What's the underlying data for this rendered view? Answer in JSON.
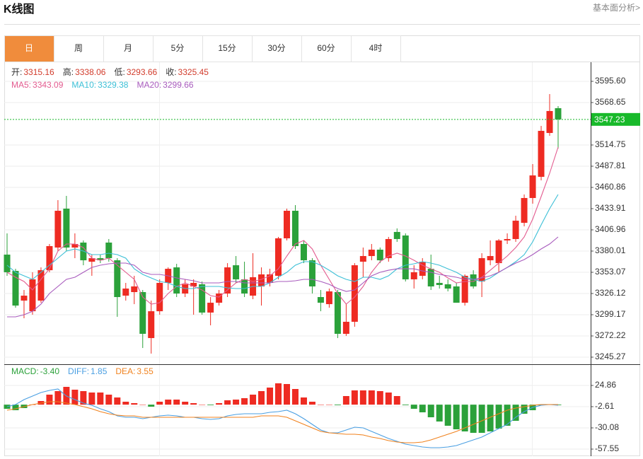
{
  "header": {
    "title": "K线图",
    "link": "基本面分析>"
  },
  "tabs": [
    {
      "label": "日",
      "active": true
    },
    {
      "label": "周"
    },
    {
      "label": "月"
    },
    {
      "label": "5分"
    },
    {
      "label": "15分"
    },
    {
      "label": "30分"
    },
    {
      "label": "60分"
    },
    {
      "label": "4时"
    }
  ],
  "chart_data": [
    {
      "type": "candlestick",
      "up_color": "#ee2b22",
      "down_color": "#2ba13a",
      "grid": true,
      "ylim": [
        3236.28,
        3619.85
      ],
      "yticks": [
        3245.27,
        3272.22,
        3299.17,
        3326.12,
        3353.07,
        3380.01,
        3406.96,
        3433.91,
        3460.86,
        3487.81,
        3514.75,
        3568.65,
        {
          "value": 3595.6,
          "label": "3595.60"
        }
      ],
      "last_price": 3547.23,
      "last_price_color": "#18b92a",
      "readout_color": "#d23c2c",
      "readout": [
        {
          "label": "开:",
          "value": 3315.16
        },
        {
          "label": "高:",
          "value": 3338.06
        },
        {
          "label": "低:",
          "value": 3293.66
        },
        {
          "label": "收:",
          "value": 3325.45
        }
      ],
      "open": [
        3375.5,
        3354.8,
        3317.1,
        3303.6,
        3317.1,
        3355.7,
        3384.5,
        3433.9,
        3384.5,
        3390.8,
        3366.5,
        3371.0,
        3390.8,
        3368.3,
        3323.4,
        3327.9,
        3327.9,
        3269.5,
        3303.6,
        3339.6,
        3359.3,
        3326.1,
        3335.1,
        3337.8,
        3301.9,
        3314.4,
        3326.1,
        3362.0,
        3344.1,
        3323.4,
        3335.1,
        3339.6,
        3348.6,
        3396.2,
        3431.2,
        3389.0,
        3368.3,
        3321.6,
        3312.6,
        3327.9,
        3274.9,
        3290.2,
        3366.5,
        3373.7,
        3381.8,
        3371.0,
        3404.3,
        3399.8,
        3344.1,
        3348.6,
        3357.5,
        3339.6,
        3337.8,
        3335.1,
        3314.4,
        3350.4,
        3341.4,
        3368.3,
        3364.7,
        3393.5,
        3395.3,
        3415.9,
        3447.4,
        3474.3,
        3530.0,
        3561.5
      ],
      "high": [
        3402.5,
        3357.5,
        3330.6,
        3353.1,
        3359.3,
        3389.0,
        3444.7,
        3450.1,
        3402.5,
        3393.5,
        3375.5,
        3375.5,
        3395.3,
        3371.0,
        3339.6,
        3348.6,
        3330.6,
        3317.1,
        3344.1,
        3359.3,
        3363.8,
        3344.1,
        3344.1,
        3341.4,
        3321.6,
        3330.6,
        3364.7,
        3373.7,
        3366.5,
        3377.3,
        3359.3,
        3357.5,
        3398.0,
        3433.9,
        3438.4,
        3393.5,
        3371.0,
        3330.6,
        3332.4,
        3330.6,
        3312.6,
        3364.7,
        3384.5,
        3389.0,
        3384.5,
        3398.0,
        3408.8,
        3402.5,
        3362.0,
        3371.0,
        3375.5,
        3348.6,
        3344.1,
        3339.6,
        3350.4,
        3355.7,
        3377.3,
        3393.5,
        3395.3,
        3402.5,
        3424.9,
        3451.9,
        3490.5,
        3539.0,
        3579.4,
        3564.2
      ],
      "low": [
        3348.6,
        3308.1,
        3294.7,
        3299.2,
        3314.4,
        3353.1,
        3380.0,
        3380.0,
        3371.0,
        3362.0,
        3348.6,
        3364.7,
        3366.5,
        3296.5,
        3317.1,
        3312.6,
        3256.9,
        3249.8,
        3299.2,
        3330.6,
        3321.6,
        3321.6,
        3299.2,
        3299.2,
        3285.7,
        3310.8,
        3321.6,
        3339.6,
        3321.6,
        3318.9,
        3310.8,
        3335.1,
        3344.1,
        3393.5,
        3382.7,
        3364.7,
        3326.1,
        3303.6,
        3308.1,
        3269.5,
        3272.2,
        3283.9,
        3346.8,
        3368.3,
        3364.7,
        3366.5,
        3391.7,
        3341.4,
        3332.4,
        3344.1,
        3330.6,
        3332.4,
        3328.8,
        3314.4,
        3310.8,
        3332.4,
        3321.6,
        3362.0,
        3353.1,
        3389.0,
        3391.7,
        3411.4,
        3440.2,
        3469.8,
        3526.4,
        3510.3
      ],
      "close": [
        3353.1,
        3310.8,
        3323.4,
        3344.1,
        3355.7,
        3386.3,
        3431.2,
        3384.5,
        3389.0,
        3368.3,
        3371.0,
        3368.3,
        3371.0,
        3321.6,
        3332.4,
        3335.1,
        3274.9,
        3303.6,
        3339.6,
        3357.5,
        3326.1,
        3337.8,
        3339.6,
        3301.9,
        3314.4,
        3326.1,
        3359.3,
        3344.1,
        3326.1,
        3346.8,
        3350.4,
        3350.4,
        3396.2,
        3431.2,
        3386.3,
        3368.3,
        3335.1,
        3314.4,
        3328.8,
        3274.9,
        3290.2,
        3362.0,
        3373.7,
        3381.8,
        3368.3,
        3395.3,
        3395.3,
        3344.1,
        3353.1,
        3366.5,
        3335.1,
        3336.9,
        3332.4,
        3314.4,
        3348.6,
        3335.1,
        3371.0,
        3373.7,
        3393.5,
        3395.3,
        3418.6,
        3447.4,
        3476.1,
        3532.7,
        3557.9,
        3547.23
      ],
      "series": [
        {
          "name": "MA5:",
          "color": "#e35b8f",
          "current": 3343.09,
          "values": [
            3353.1,
            3346.8,
            3341.4,
            3330.6,
            3344.1,
            3357.5,
            3380.0,
            3389.0,
            3389.0,
            3384.5,
            3371.0,
            3368.3,
            3371.0,
            3362.0,
            3353.1,
            3344.1,
            3321.6,
            3312.6,
            3314.4,
            3326.1,
            3335.1,
            3339.6,
            3335.1,
            3330.6,
            3323.4,
            3321.6,
            3330.6,
            3339.6,
            3344.1,
            3341.4,
            3344.1,
            3348.6,
            3357.5,
            3373.7,
            3389.0,
            3393.5,
            3382.7,
            3362.0,
            3344.1,
            3326.1,
            3312.6,
            3321.6,
            3335.1,
            3353.1,
            3366.5,
            3373.7,
            3377.3,
            3373.7,
            3368.3,
            3362.0,
            3357.5,
            3353.1,
            3345.9,
            3339.6,
            3341.4,
            3341.4,
            3346.8,
            3355.7,
            3364.7,
            3373.7,
            3384.5,
            3398.0,
            3420.4,
            3449.2,
            3478.8,
            3512.1
          ]
        },
        {
          "name": "MA10:",
          "color": "#3bbfd6",
          "current": 3329.38,
          "values": [
            3362.0,
            3353.1,
            3348.6,
            3344.1,
            3353.1,
            3362.0,
            3371.0,
            3380.0,
            3382.7,
            3380.0,
            3375.5,
            3375.5,
            3377.3,
            3375.5,
            3371.0,
            3357.5,
            3350.4,
            3345.9,
            3341.4,
            3339.6,
            3335.1,
            3332.4,
            3332.4,
            3335.1,
            3335.1,
            3335.1,
            3333.3,
            3332.4,
            3332.4,
            3335.1,
            3335.1,
            3339.6,
            3346.8,
            3353.1,
            3362.0,
            3366.5,
            3366.5,
            3362.0,
            3355.7,
            3348.6,
            3344.1,
            3341.4,
            3346.8,
            3346.8,
            3344.1,
            3348.6,
            3357.5,
            3362.0,
            3363.8,
            3366.5,
            3364.7,
            3362.0,
            3357.5,
            3353.1,
            3346.8,
            3344.1,
            3341.4,
            3345.9,
            3353.1,
            3359.3,
            3366.5,
            3375.5,
            3391.7,
            3413.2,
            3433.9,
            3451.9
          ]
        },
        {
          "name": "MA20:",
          "color": "#a85bbd",
          "current": 3299.66,
          "values": [
            3296.5,
            3296.5,
            3299.2,
            3303.6,
            3312.6,
            3326.1,
            3335.1,
            3344.1,
            3346.8,
            3353.1,
            3359.3,
            3362.0,
            3363.8,
            3364.7,
            3364.7,
            3362.0,
            3353.1,
            3350.4,
            3350.4,
            3348.6,
            3345.9,
            3344.1,
            3342.3,
            3339.6,
            3339.6,
            3339.6,
            3341.4,
            3341.4,
            3339.6,
            3339.6,
            3339.6,
            3339.6,
            3341.4,
            3341.4,
            3342.3,
            3344.1,
            3344.1,
            3341.4,
            3337.8,
            3332.4,
            3328.8,
            3330.6,
            3339.6,
            3348.6,
            3353.1,
            3355.7,
            3357.5,
            3357.5,
            3357.5,
            3354.8,
            3353.1,
            3350.4,
            3348.6,
            3346.8,
            3344.1,
            3344.1,
            3345.9,
            3348.6,
            3353.1,
            3359.3,
            3364.7,
            3369.2,
            3375.5,
            3382.7,
            3389.0,
            3398.0
          ]
        }
      ]
    },
    {
      "type": "macd",
      "up_color": "#ee2b22",
      "down_color": "#2ba13a",
      "grid": true,
      "ylim": [
        -66.71,
        52.33
      ],
      "yticks": [
        -57.55,
        -30.08,
        -2.61,
        24.86
      ],
      "series": [
        {
          "name": "MACD:",
          "style": "bar",
          "color": "#2ba13a",
          "current": -3.4,
          "current_label": "-3.40",
          "values": [
            -5.36,
            -7.19,
            -4.44,
            0.14,
            4.72,
            12.96,
            17.54,
            23.03,
            19.37,
            17.54,
            15.7,
            15.7,
            12.96,
            9.29,
            3.8,
            1.97,
            0.14,
            -2.61,
            3.8,
            6.55,
            6.55,
            3.8,
            1.97,
            0.14,
            -0.78,
            1.97,
            5.63,
            6.55,
            8.38,
            12.96,
            17.54,
            22.12,
            27.61,
            26.69,
            20.28,
            9.29,
            3.8,
            0.14,
            0.14,
            -0.78,
            11.13,
            18.45,
            18.45,
            18.45,
            17.54,
            15.7,
            11.13,
            -0.78,
            -5.36,
            -9.93,
            -16.34,
            -21.83,
            -27.33,
            -31.91,
            -34.66,
            -36.49,
            -36.49,
            -34.66,
            -30.99,
            -27.33,
            -20.92,
            -11.77,
            -7.19,
            -0.78,
            0.14,
            -0.78
          ]
        },
        {
          "name": "DIFF:",
          "style": "line",
          "color": "#4a9fe2",
          "current": 1.85,
          "values": [
            -2.61,
            0.14,
            6.55,
            11.13,
            15.7,
            18.45,
            20.28,
            11.13,
            6.55,
            1.97,
            -0.78,
            -5.36,
            -9.02,
            -14.51,
            -16.34,
            -16.34,
            -18.17,
            -16.34,
            -14.51,
            -13.6,
            -14.51,
            -16.34,
            -16.34,
            -18.17,
            -19.09,
            -18.17,
            -14.51,
            -12.68,
            -11.77,
            -11.77,
            -11.77,
            -9.93,
            -9.02,
            -7.19,
            -11.77,
            -18.17,
            -25.5,
            -32.82,
            -36.49,
            -36.49,
            -32.82,
            -29.16,
            -30.08,
            -34.66,
            -39.23,
            -43.81,
            -47.48,
            -51.14,
            -52.97,
            -54.8,
            -55.72,
            -55.72,
            -54.8,
            -52.97,
            -49.31,
            -45.64,
            -41.98,
            -36.49,
            -30.99,
            -25.5,
            -16.34,
            -9.02,
            -3.53,
            -0.78,
            0.14,
            -0.78
          ]
        },
        {
          "name": "DEA:",
          "style": "line",
          "color": "#f0821e",
          "current": 3.55,
          "values": [
            -7.19,
            -5.36,
            -2.61,
            0.14,
            1.97,
            3.8,
            3.8,
            1.97,
            0.14,
            -2.61,
            -5.36,
            -9.02,
            -11.77,
            -13.6,
            -14.51,
            -14.51,
            -16.34,
            -16.34,
            -16.34,
            -16.34,
            -16.34,
            -16.34,
            -16.34,
            -16.34,
            -16.34,
            -16.34,
            -16.34,
            -16.34,
            -16.34,
            -16.34,
            -14.51,
            -14.51,
            -14.51,
            -16.34,
            -20.92,
            -25.5,
            -30.08,
            -34.66,
            -36.49,
            -37.4,
            -38.32,
            -38.32,
            -39.23,
            -41.98,
            -43.81,
            -46.56,
            -48.39,
            -49.31,
            -49.31,
            -48.39,
            -45.64,
            -41.98,
            -38.32,
            -34.66,
            -30.08,
            -25.5,
            -20.92,
            -16.34,
            -11.77,
            -7.19,
            -4.44,
            -2.61,
            -0.78,
            0.14,
            0.14,
            0.14
          ]
        }
      ]
    }
  ]
}
